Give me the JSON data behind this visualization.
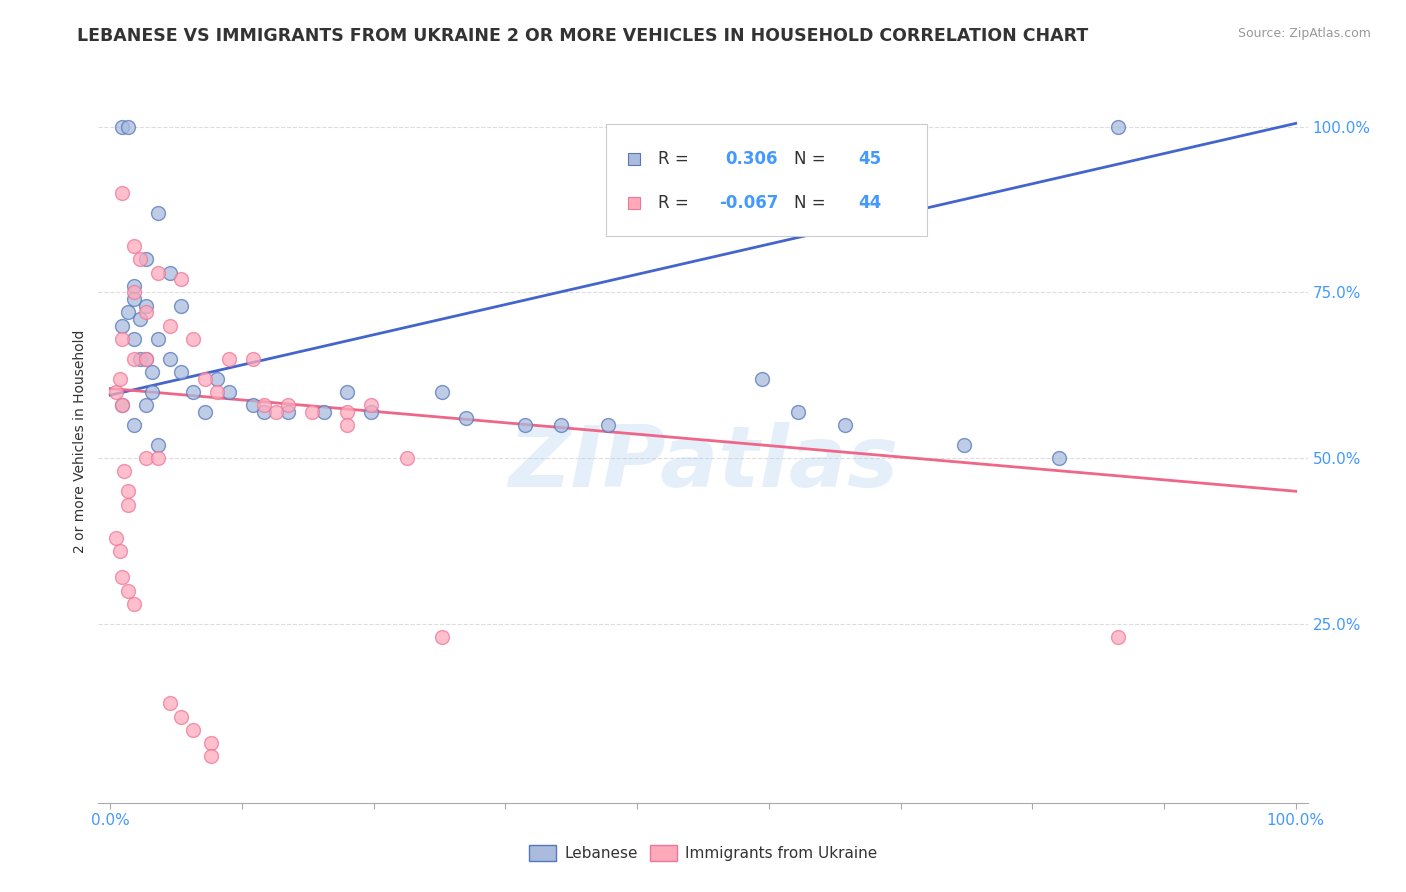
{
  "title": "LEBANESE VS IMMIGRANTS FROM UKRAINE 2 OR MORE VEHICLES IN HOUSEHOLD CORRELATION CHART",
  "source": "Source: ZipAtlas.com",
  "ylabel": "2 or more Vehicles in Household",
  "ytick_labels": [
    "25.0%",
    "50.0%",
    "75.0%",
    "100.0%"
  ],
  "ytick_values": [
    0.25,
    0.5,
    0.75,
    1.0
  ],
  "xtick_labels": [
    "0.0%",
    "",
    "",
    "",
    "",
    "",
    "",
    "",
    "",
    "100.0%"
  ],
  "xlim": [
    -0.01,
    1.01
  ],
  "ylim": [
    -0.02,
    1.07
  ],
  "legend_R_blue": "0.306",
  "legend_N_blue": "45",
  "legend_R_pink": "-0.067",
  "legend_N_pink": "44",
  "blue_fill": "#AABBDD",
  "blue_edge": "#5577BB",
  "pink_fill": "#FFAABB",
  "pink_edge": "#EE7799",
  "blue_line_color": "#4466CC",
  "pink_line_color": "#EE6688",
  "label_color": "#4499FF",
  "text_color": "#333333",
  "grid_color": "#DDDDDD",
  "background_color": "#FFFFFF",
  "blue_x": [
    0.01,
    0.015,
    0.015,
    0.02,
    0.02,
    0.02,
    0.025,
    0.025,
    0.03,
    0.03,
    0.03,
    0.035,
    0.035,
    0.04,
    0.04,
    0.05,
    0.05,
    0.06,
    0.06,
    0.07,
    0.08,
    0.09,
    0.1,
    0.12,
    0.13,
    0.15,
    0.18,
    0.2,
    0.22,
    0.28,
    0.3,
    0.35,
    0.38,
    0.42,
    0.55,
    0.58,
    0.62,
    0.72,
    0.8,
    0.85,
    0.01,
    0.01,
    0.02,
    0.03,
    0.04
  ],
  "blue_y": [
    1.0,
    1.0,
    0.72,
    0.76,
    0.74,
    0.68,
    0.65,
    0.71,
    0.8,
    0.73,
    0.65,
    0.63,
    0.6,
    0.87,
    0.68,
    0.78,
    0.65,
    0.73,
    0.63,
    0.6,
    0.57,
    0.62,
    0.6,
    0.58,
    0.57,
    0.57,
    0.57,
    0.6,
    0.57,
    0.6,
    0.56,
    0.55,
    0.55,
    0.55,
    0.62,
    0.57,
    0.55,
    0.52,
    0.5,
    1.0,
    0.58,
    0.7,
    0.55,
    0.58,
    0.52
  ],
  "pink_x": [
    0.005,
    0.008,
    0.01,
    0.01,
    0.01,
    0.012,
    0.015,
    0.015,
    0.02,
    0.02,
    0.02,
    0.025,
    0.03,
    0.03,
    0.04,
    0.05,
    0.06,
    0.07,
    0.08,
    0.09,
    0.1,
    0.12,
    0.13,
    0.14,
    0.15,
    0.17,
    0.2,
    0.22,
    0.25,
    0.28,
    0.005,
    0.008,
    0.01,
    0.015,
    0.02,
    0.03,
    0.04,
    0.05,
    0.06,
    0.07,
    0.085,
    0.085,
    0.85,
    0.2
  ],
  "pink_y": [
    0.6,
    0.62,
    0.9,
    0.68,
    0.58,
    0.48,
    0.45,
    0.43,
    0.82,
    0.75,
    0.65,
    0.8,
    0.72,
    0.65,
    0.78,
    0.7,
    0.77,
    0.68,
    0.62,
    0.6,
    0.65,
    0.65,
    0.58,
    0.57,
    0.58,
    0.57,
    0.57,
    0.58,
    0.5,
    0.23,
    0.38,
    0.36,
    0.32,
    0.3,
    0.28,
    0.5,
    0.5,
    0.13,
    0.11,
    0.09,
    0.07,
    0.05,
    0.23,
    0.55
  ],
  "blue_intercept": 0.595,
  "blue_slope": 0.41,
  "pink_intercept": 0.605,
  "pink_slope": -0.155,
  "watermark": "ZIPatlas"
}
